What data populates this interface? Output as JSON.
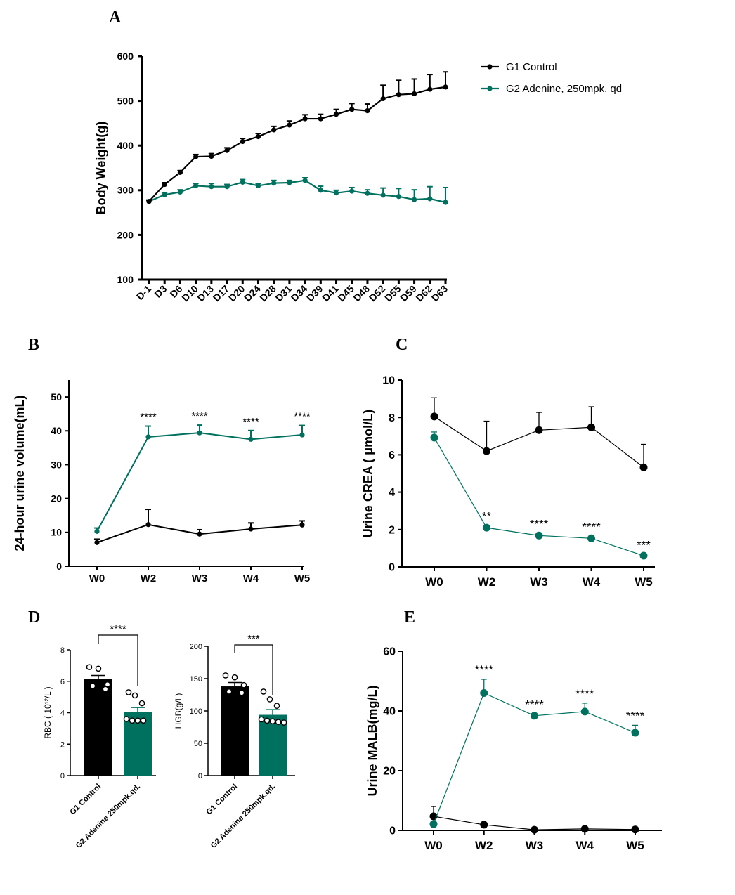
{
  "chart_data": [
    {
      "panel": "A",
      "type": "line",
      "ylabel": "Body Weight(g)",
      "categories": [
        "D-1",
        "D3",
        "D6",
        "D10",
        "D13",
        "D17",
        "D20",
        "D24",
        "D28",
        "D31",
        "D34",
        "D39",
        "D41",
        "D45",
        "D48",
        "D52",
        "D55",
        "D59",
        "D62",
        "D63"
      ],
      "ylim": [
        100,
        600
      ],
      "yticks": [
        100,
        200,
        300,
        400,
        500,
        600
      ],
      "legend_position": "top-right",
      "series": [
        {
          "name": "G1 Control",
          "color": "#000000",
          "values": [
            275,
            313,
            340,
            375,
            376,
            389,
            409,
            420,
            435,
            446,
            460,
            460,
            470,
            481,
            478,
            505,
            514,
            516,
            526,
            531
          ],
          "errors": [
            3,
            4,
            4,
            5,
            6,
            6,
            7,
            7,
            8,
            9,
            9,
            10,
            11,
            13,
            15,
            30,
            32,
            33,
            33,
            34
          ]
        },
        {
          "name": "G2  Adenine, 250mpk, qd",
          "color": "#00715F",
          "values": [
            275,
            290,
            296,
            310,
            308,
            308,
            318,
            310,
            316,
            317,
            322,
            300,
            294,
            298,
            293,
            289,
            286,
            279,
            281,
            273
          ],
          "errors": [
            3,
            5,
            5,
            5,
            7,
            5,
            6,
            5,
            6,
            5,
            6,
            9,
            6,
            8,
            8,
            16,
            18,
            22,
            27,
            33
          ]
        }
      ]
    },
    {
      "panel": "B",
      "type": "line",
      "ylabel": "24-hour urine volume(mL)",
      "categories": [
        "W0",
        "W2",
        "W3",
        "W4",
        "W5"
      ],
      "ylim": [
        0,
        55
      ],
      "yticks": [
        0,
        10,
        20,
        30,
        40,
        50
      ],
      "series": [
        {
          "name": "G1 Control",
          "color": "#000000",
          "values": [
            7,
            12.3,
            9.5,
            11,
            12.2
          ],
          "errors": [
            1,
            4.5,
            1.3,
            1.8,
            1.2
          ]
        },
        {
          "name": "G2 Adenine",
          "color": "#00715F",
          "values": [
            10.3,
            38.2,
            39.4,
            37.5,
            38.8
          ],
          "errors": [
            1,
            3.2,
            2.3,
            2.6,
            2.8
          ]
        }
      ],
      "annotations": [
        "",
        "****",
        "****",
        "****",
        "****"
      ]
    },
    {
      "panel": "C",
      "type": "line",
      "ylabel": "Urine CREA ( μmol/L)",
      "categories": [
        "W0",
        "W2",
        "W3",
        "W4",
        "W5"
      ],
      "ylim": [
        0,
        10
      ],
      "yticks": [
        0,
        2,
        4,
        6,
        8,
        10
      ],
      "series": [
        {
          "name": "G1 Control",
          "color": "#000000",
          "values": [
            8.05,
            6.2,
            7.32,
            7.47,
            5.33
          ],
          "errors": [
            1.0,
            1.6,
            0.95,
            1.1,
            1.23
          ]
        },
        {
          "name": "G2 Adenine",
          "color": "#00715F",
          "values": [
            6.92,
            2.1,
            1.68,
            1.53,
            0.6
          ],
          "errors": [
            0.3,
            0.1,
            0.1,
            0.1,
            0.05
          ]
        }
      ],
      "annotations": [
        "",
        "**",
        "****",
        "****",
        "***"
      ]
    },
    {
      "panel": "D",
      "type": "bar",
      "ylabel": "RBC ( 10¹²/L )",
      "categories": [
        "G1 Control",
        "G2 Adenine 250mpk.qd."
      ],
      "ylim": [
        0,
        8
      ],
      "yticks": [
        0,
        2,
        4,
        6,
        8
      ],
      "values": [
        6.15,
        4.05
      ],
      "errors": [
        0.22,
        0.28
      ],
      "colors": [
        "#000000",
        "#00715F"
      ],
      "points": [
        [
          6.9,
          6.8,
          5.8,
          5.7,
          5.5
        ],
        [
          5.3,
          5.1,
          4.6,
          3.6,
          3.5,
          3.5,
          3.5
        ]
      ],
      "significance": "****"
    },
    {
      "panel": "D",
      "type": "bar",
      "ylabel": "HGB(g/L)",
      "categories": [
        "G1 Control",
        "G2 Adenine 250mpk.qd."
      ],
      "ylim": [
        0,
        200
      ],
      "yticks": [
        0,
        50,
        100,
        150,
        200
      ],
      "values": [
        138,
        94
      ],
      "errors": [
        6,
        8
      ],
      "colors": [
        "#000000",
        "#00715F"
      ],
      "points": [
        [
          155,
          152,
          140,
          130,
          128
        ],
        [
          130,
          118,
          108,
          87,
          85,
          84,
          83,
          82
        ]
      ],
      "significance": "***"
    },
    {
      "panel": "E",
      "type": "line",
      "ylabel": "Urine MALB(mg/L)",
      "categories": [
        "W0",
        "W2",
        "W3",
        "W4",
        "W5"
      ],
      "ylim": [
        0,
        60
      ],
      "yticks": [
        0,
        20,
        40,
        60
      ],
      "series": [
        {
          "name": "G1 Control",
          "color": "#000000",
          "values": [
            4.7,
            1.9,
            0.2,
            0.5,
            0.3
          ],
          "errors": [
            3.3,
            0.2,
            0.1,
            0.3,
            0.1
          ]
        },
        {
          "name": "G2 Adenine",
          "color": "#00715F",
          "values": [
            2.1,
            46,
            38.4,
            39.8,
            32.7
          ],
          "errors": [
            0.3,
            4.6,
            0.5,
            2.8,
            2.5
          ]
        }
      ],
      "annotations": [
        "",
        "****",
        "****",
        "****",
        "****"
      ]
    }
  ]
}
